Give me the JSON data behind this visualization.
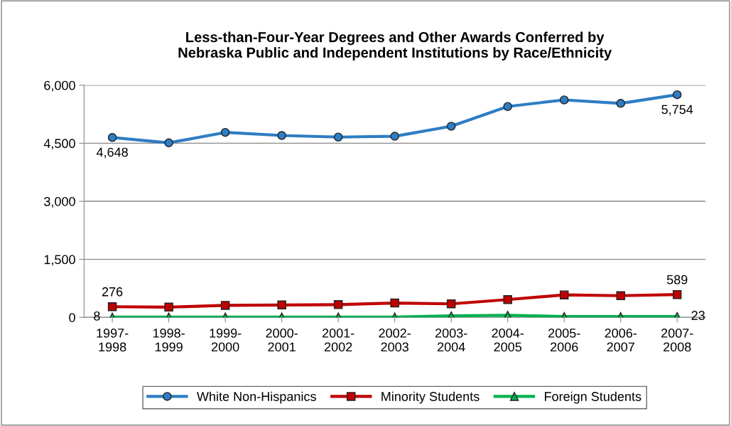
{
  "chart_data": {
    "type": "line",
    "title": "Less-than-Four-Year Degrees and Other Awards Conferred by\nNebraska Public and Independent Institutions by Race/Ethnicity",
    "categories": [
      "1997-\n1998",
      "1998-\n1999",
      "1999-\n2000",
      "2000-\n2001",
      "2001-\n2002",
      "2002-\n2003",
      "2003-\n2004",
      "2004-\n2005",
      "2005-\n2006",
      "2006-\n2007",
      "2007-\n2008"
    ],
    "series": [
      {
        "name": "White Non-Hispanics",
        "color": "#2e7dc3",
        "marker": "circle",
        "values": [
          4648,
          4510,
          4780,
          4700,
          4660,
          4680,
          4940,
          5450,
          5620,
          5530,
          5754
        ],
        "value_labels": [
          "4,648",
          null,
          null,
          null,
          null,
          null,
          null,
          null,
          null,
          null,
          "5,754"
        ]
      },
      {
        "name": "Minority Students",
        "color": "#c00000",
        "marker": "square",
        "values": [
          276,
          265,
          310,
          320,
          330,
          370,
          350,
          460,
          580,
          560,
          589
        ],
        "value_labels": [
          "276",
          null,
          null,
          null,
          null,
          null,
          null,
          null,
          null,
          null,
          "589"
        ]
      },
      {
        "name": "Foreign Students",
        "color": "#00b050",
        "marker": "triangle",
        "values": [
          8,
          10,
          10,
          10,
          10,
          10,
          40,
          55,
          20,
          20,
          23
        ],
        "value_labels": [
          "8",
          null,
          null,
          null,
          null,
          null,
          null,
          null,
          null,
          null,
          "23"
        ]
      }
    ],
    "ylim": [
      0,
      6000
    ],
    "yticks": [
      {
        "value": 0,
        "label": "0"
      },
      {
        "value": 1500,
        "label": "1,500"
      },
      {
        "value": 3000,
        "label": "3,000"
      },
      {
        "value": 4500,
        "label": "4,500"
      },
      {
        "value": 6000,
        "label": "6,000"
      }
    ],
    "grid": "y",
    "legend": "bottom",
    "line_style": "solid"
  }
}
